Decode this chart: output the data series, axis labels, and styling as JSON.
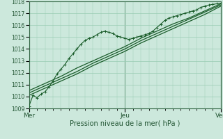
{
  "title": "",
  "xlabel": "Pression niveau de la mer( hPa )",
  "ylabel": "",
  "bg_color": "#cce8dc",
  "grid_color": "#99ccb3",
  "line_color": "#1a5c2a",
  "spine_color": "#336644",
  "xlim": [
    0,
    96
  ],
  "ylim": [
    1009,
    1018
  ],
  "yticks": [
    1009,
    1010,
    1011,
    1012,
    1013,
    1014,
    1015,
    1016,
    1017,
    1018
  ],
  "xtick_positions": [
    0,
    48,
    96
  ],
  "xtick_labels": [
    "Mer",
    "Jeu",
    "Ven"
  ],
  "t1": [
    0,
    2,
    4,
    6,
    8,
    10,
    12,
    14,
    16,
    18,
    20,
    22,
    24,
    26,
    28,
    30,
    32,
    34,
    36,
    38,
    40,
    42,
    44,
    46,
    48,
    50,
    52,
    54,
    56,
    58,
    60,
    62,
    64,
    66,
    68,
    70,
    72,
    74,
    76,
    78,
    80,
    82,
    84,
    86,
    88,
    90,
    92,
    94,
    96
  ],
  "p1": [
    1009.2,
    1010.1,
    1009.9,
    1010.2,
    1010.4,
    1010.8,
    1011.3,
    1011.9,
    1012.3,
    1012.7,
    1013.2,
    1013.6,
    1014.0,
    1014.4,
    1014.7,
    1014.9,
    1015.0,
    1015.2,
    1015.4,
    1015.5,
    1015.4,
    1015.3,
    1015.1,
    1015.0,
    1014.9,
    1014.8,
    1014.9,
    1015.0,
    1015.1,
    1015.2,
    1015.3,
    1015.5,
    1015.8,
    1016.1,
    1016.4,
    1016.6,
    1016.7,
    1016.8,
    1016.9,
    1017.0,
    1017.1,
    1017.2,
    1017.3,
    1017.5,
    1017.6,
    1017.7,
    1017.75,
    1017.8,
    1017.85
  ],
  "t2": [
    0,
    8,
    16,
    24,
    32,
    40,
    48,
    56,
    64,
    72,
    80,
    88,
    96
  ],
  "p2": [
    1010.3,
    1010.9,
    1011.5,
    1012.1,
    1012.8,
    1013.4,
    1014.0,
    1014.7,
    1015.3,
    1015.9,
    1016.5,
    1017.1,
    1017.7
  ],
  "t3": [
    0,
    8,
    16,
    24,
    32,
    40,
    48,
    56,
    64,
    72,
    80,
    88,
    96
  ],
  "p3": [
    1010.5,
    1011.1,
    1011.7,
    1012.4,
    1013.0,
    1013.6,
    1014.2,
    1014.9,
    1015.5,
    1016.1,
    1016.6,
    1017.2,
    1017.8
  ],
  "t4": [
    0,
    8,
    16,
    24,
    32,
    40,
    48,
    56,
    64,
    72,
    80,
    88,
    96
  ],
  "p4": [
    1010.1,
    1010.7,
    1011.3,
    1011.9,
    1012.6,
    1013.2,
    1013.8,
    1014.5,
    1015.1,
    1015.7,
    1016.3,
    1016.9,
    1017.6
  ]
}
